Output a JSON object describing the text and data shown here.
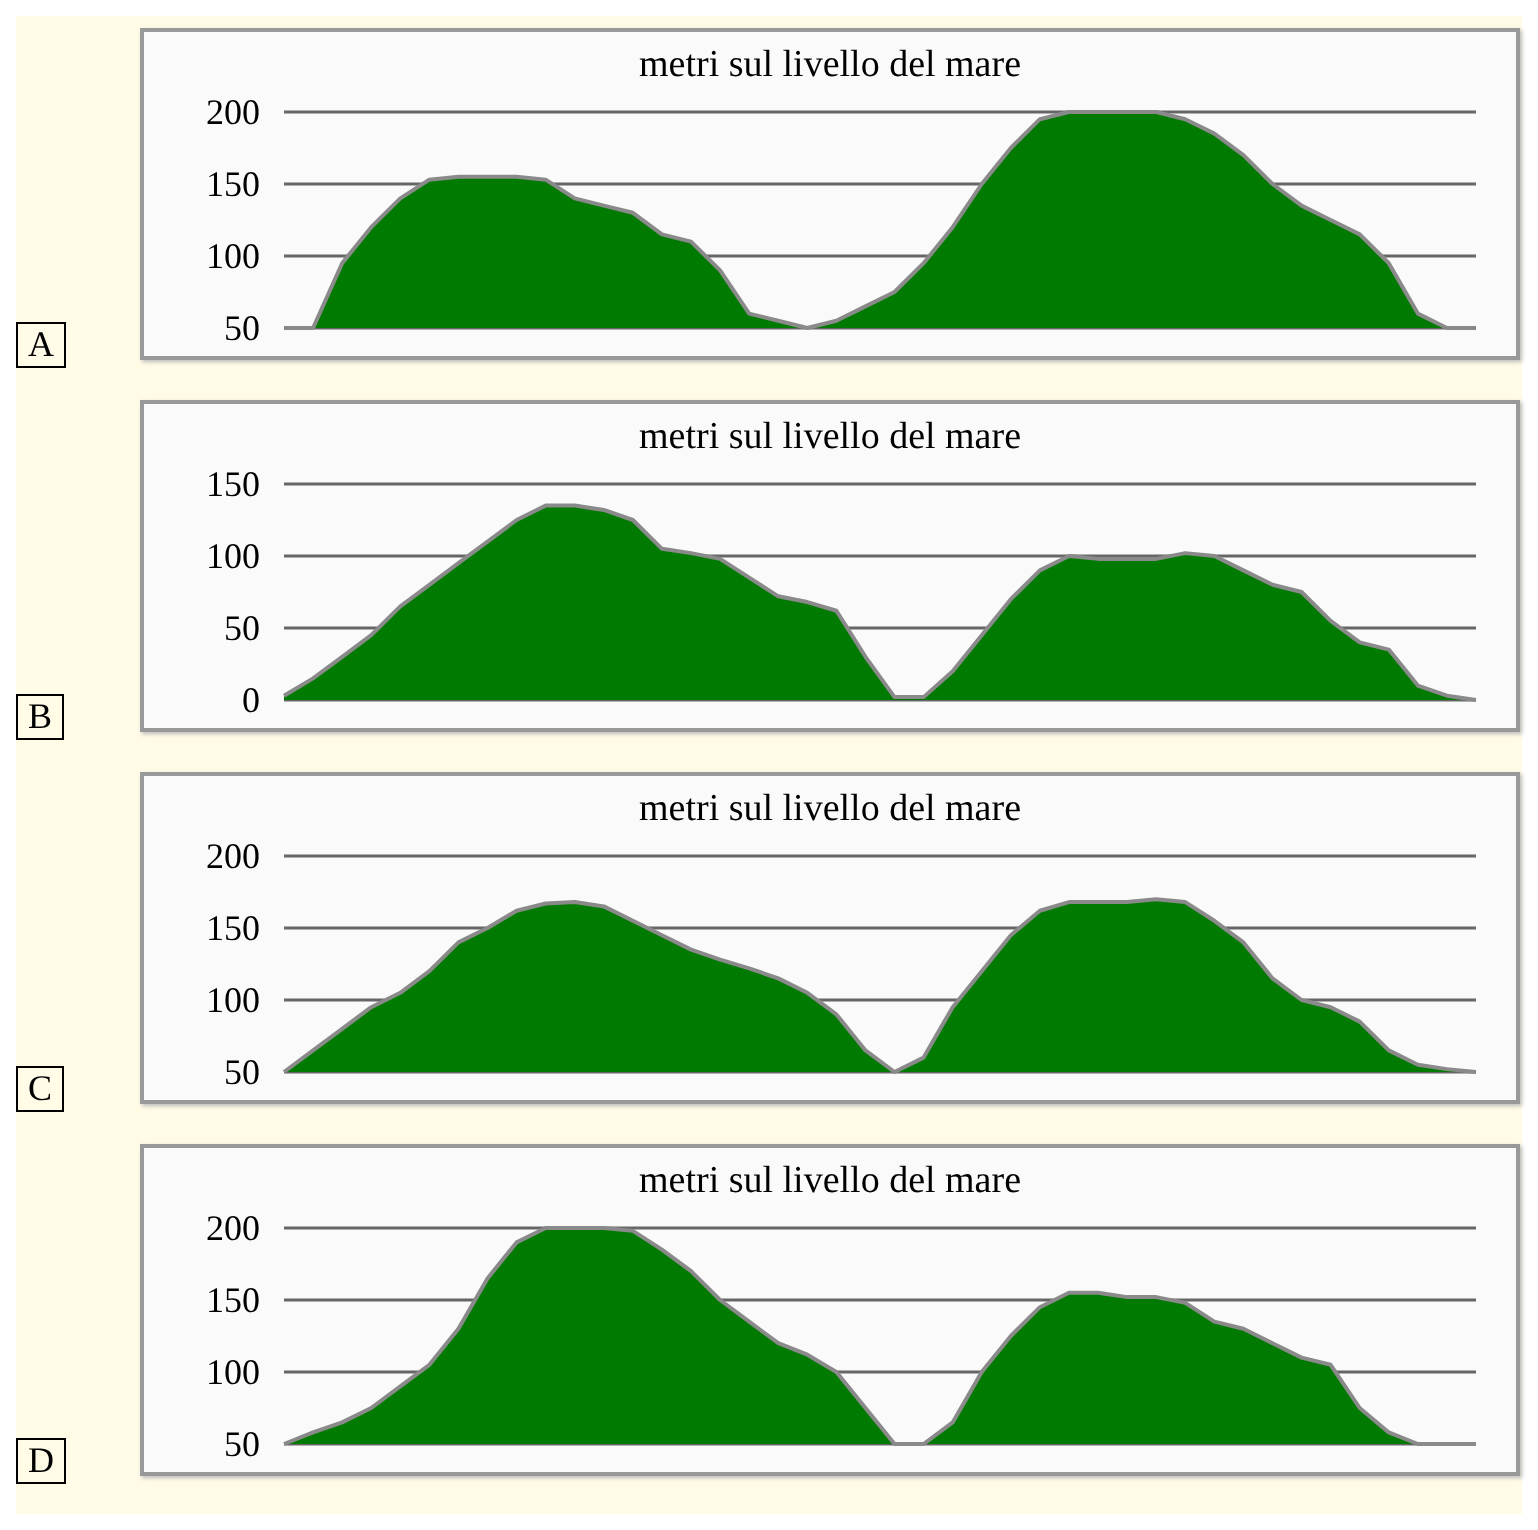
{
  "chart_data": [
    {
      "type": "area",
      "title": "metri sul livello del mare",
      "annotations": [
        "A"
      ],
      "categories": [
        null,
        null,
        null,
        null,
        null,
        null,
        null,
        null,
        null,
        null,
        null,
        null,
        null,
        null,
        null,
        null,
        null,
        null,
        null,
        null,
        null,
        null,
        null,
        null,
        null,
        null,
        null,
        null,
        null,
        null,
        null,
        null,
        null,
        null,
        null,
        null,
        null,
        null,
        null,
        null,
        null,
        null
      ],
      "values": [
        50,
        50,
        95,
        120,
        140,
        153,
        155,
        155,
        155,
        153,
        140,
        135,
        130,
        115,
        110,
        90,
        60,
        55,
        50,
        55,
        65,
        75,
        95,
        120,
        150,
        175,
        195,
        200,
        200,
        200,
        200,
        195,
        185,
        170,
        150,
        135,
        125,
        115,
        95,
        60,
        50,
        50
      ],
      "color": "#007a00",
      "ylim": [
        50,
        200
      ],
      "yticks": [
        50,
        100,
        150,
        200
      ],
      "grid": "y",
      "tick_labels": "y",
      "marker": "none"
    },
    {
      "type": "area",
      "title": "metri sul livello del mare",
      "annotations": [
        "B"
      ],
      "categories": [
        null,
        null,
        null,
        null,
        null,
        null,
        null,
        null,
        null,
        null,
        null,
        null,
        null,
        null,
        null,
        null,
        null,
        null,
        null,
        null,
        null,
        null,
        null,
        null,
        null,
        null,
        null,
        null,
        null,
        null,
        null,
        null,
        null,
        null,
        null,
        null,
        null,
        null,
        null,
        null,
        null,
        null
      ],
      "values": [
        3,
        15,
        30,
        45,
        65,
        80,
        95,
        110,
        125,
        135,
        135,
        132,
        125,
        105,
        102,
        98,
        85,
        72,
        68,
        62,
        30,
        2,
        2,
        20,
        45,
        70,
        90,
        100,
        98,
        98,
        98,
        102,
        100,
        90,
        80,
        75,
        55,
        40,
        35,
        10,
        3,
        0
      ],
      "color": "#007a00",
      "ylim": [
        0,
        150
      ],
      "yticks": [
        0,
        50,
        100,
        150
      ],
      "grid": "y",
      "tick_labels": "y",
      "marker": "none"
    },
    {
      "type": "area",
      "title": "metri sul livello del mare",
      "annotations": [
        "C"
      ],
      "categories": [
        null,
        null,
        null,
        null,
        null,
        null,
        null,
        null,
        null,
        null,
        null,
        null,
        null,
        null,
        null,
        null,
        null,
        null,
        null,
        null,
        null,
        null,
        null,
        null,
        null,
        null,
        null,
        null,
        null,
        null,
        null,
        null,
        null,
        null,
        null,
        null,
        null,
        null,
        null,
        null,
        null,
        null
      ],
      "values": [
        50,
        65,
        80,
        95,
        105,
        120,
        140,
        150,
        162,
        167,
        168,
        165,
        155,
        145,
        135,
        128,
        122,
        115,
        105,
        90,
        65,
        50,
        60,
        95,
        120,
        145,
        162,
        168,
        168,
        168,
        170,
        168,
        155,
        140,
        115,
        100,
        95,
        85,
        65,
        55,
        52,
        50
      ],
      "color": "#007a00",
      "ylim": [
        50,
        200
      ],
      "yticks": [
        50,
        100,
        150,
        200
      ],
      "grid": "y",
      "tick_labels": "y",
      "marker": "none"
    },
    {
      "type": "area",
      "title": "metri sul livello del mare",
      "annotations": [
        "D"
      ],
      "categories": [
        null,
        null,
        null,
        null,
        null,
        null,
        null,
        null,
        null,
        null,
        null,
        null,
        null,
        null,
        null,
        null,
        null,
        null,
        null,
        null,
        null,
        null,
        null,
        null,
        null,
        null,
        null,
        null,
        null,
        null,
        null,
        null,
        null,
        null,
        null,
        null,
        null,
        null,
        null,
        null,
        null,
        null
      ],
      "values": [
        50,
        58,
        65,
        75,
        90,
        105,
        130,
        165,
        190,
        200,
        200,
        200,
        198,
        185,
        170,
        150,
        135,
        120,
        112,
        100,
        75,
        50,
        50,
        65,
        100,
        125,
        145,
        155,
        155,
        152,
        152,
        148,
        135,
        130,
        120,
        110,
        105,
        75,
        58,
        50,
        50,
        50
      ],
      "color": "#007a00",
      "ylim": [
        50,
        200
      ],
      "yticks": [
        50,
        100,
        150,
        200
      ],
      "grid": "y",
      "tick_labels": "y",
      "marker": "none"
    }
  ]
}
